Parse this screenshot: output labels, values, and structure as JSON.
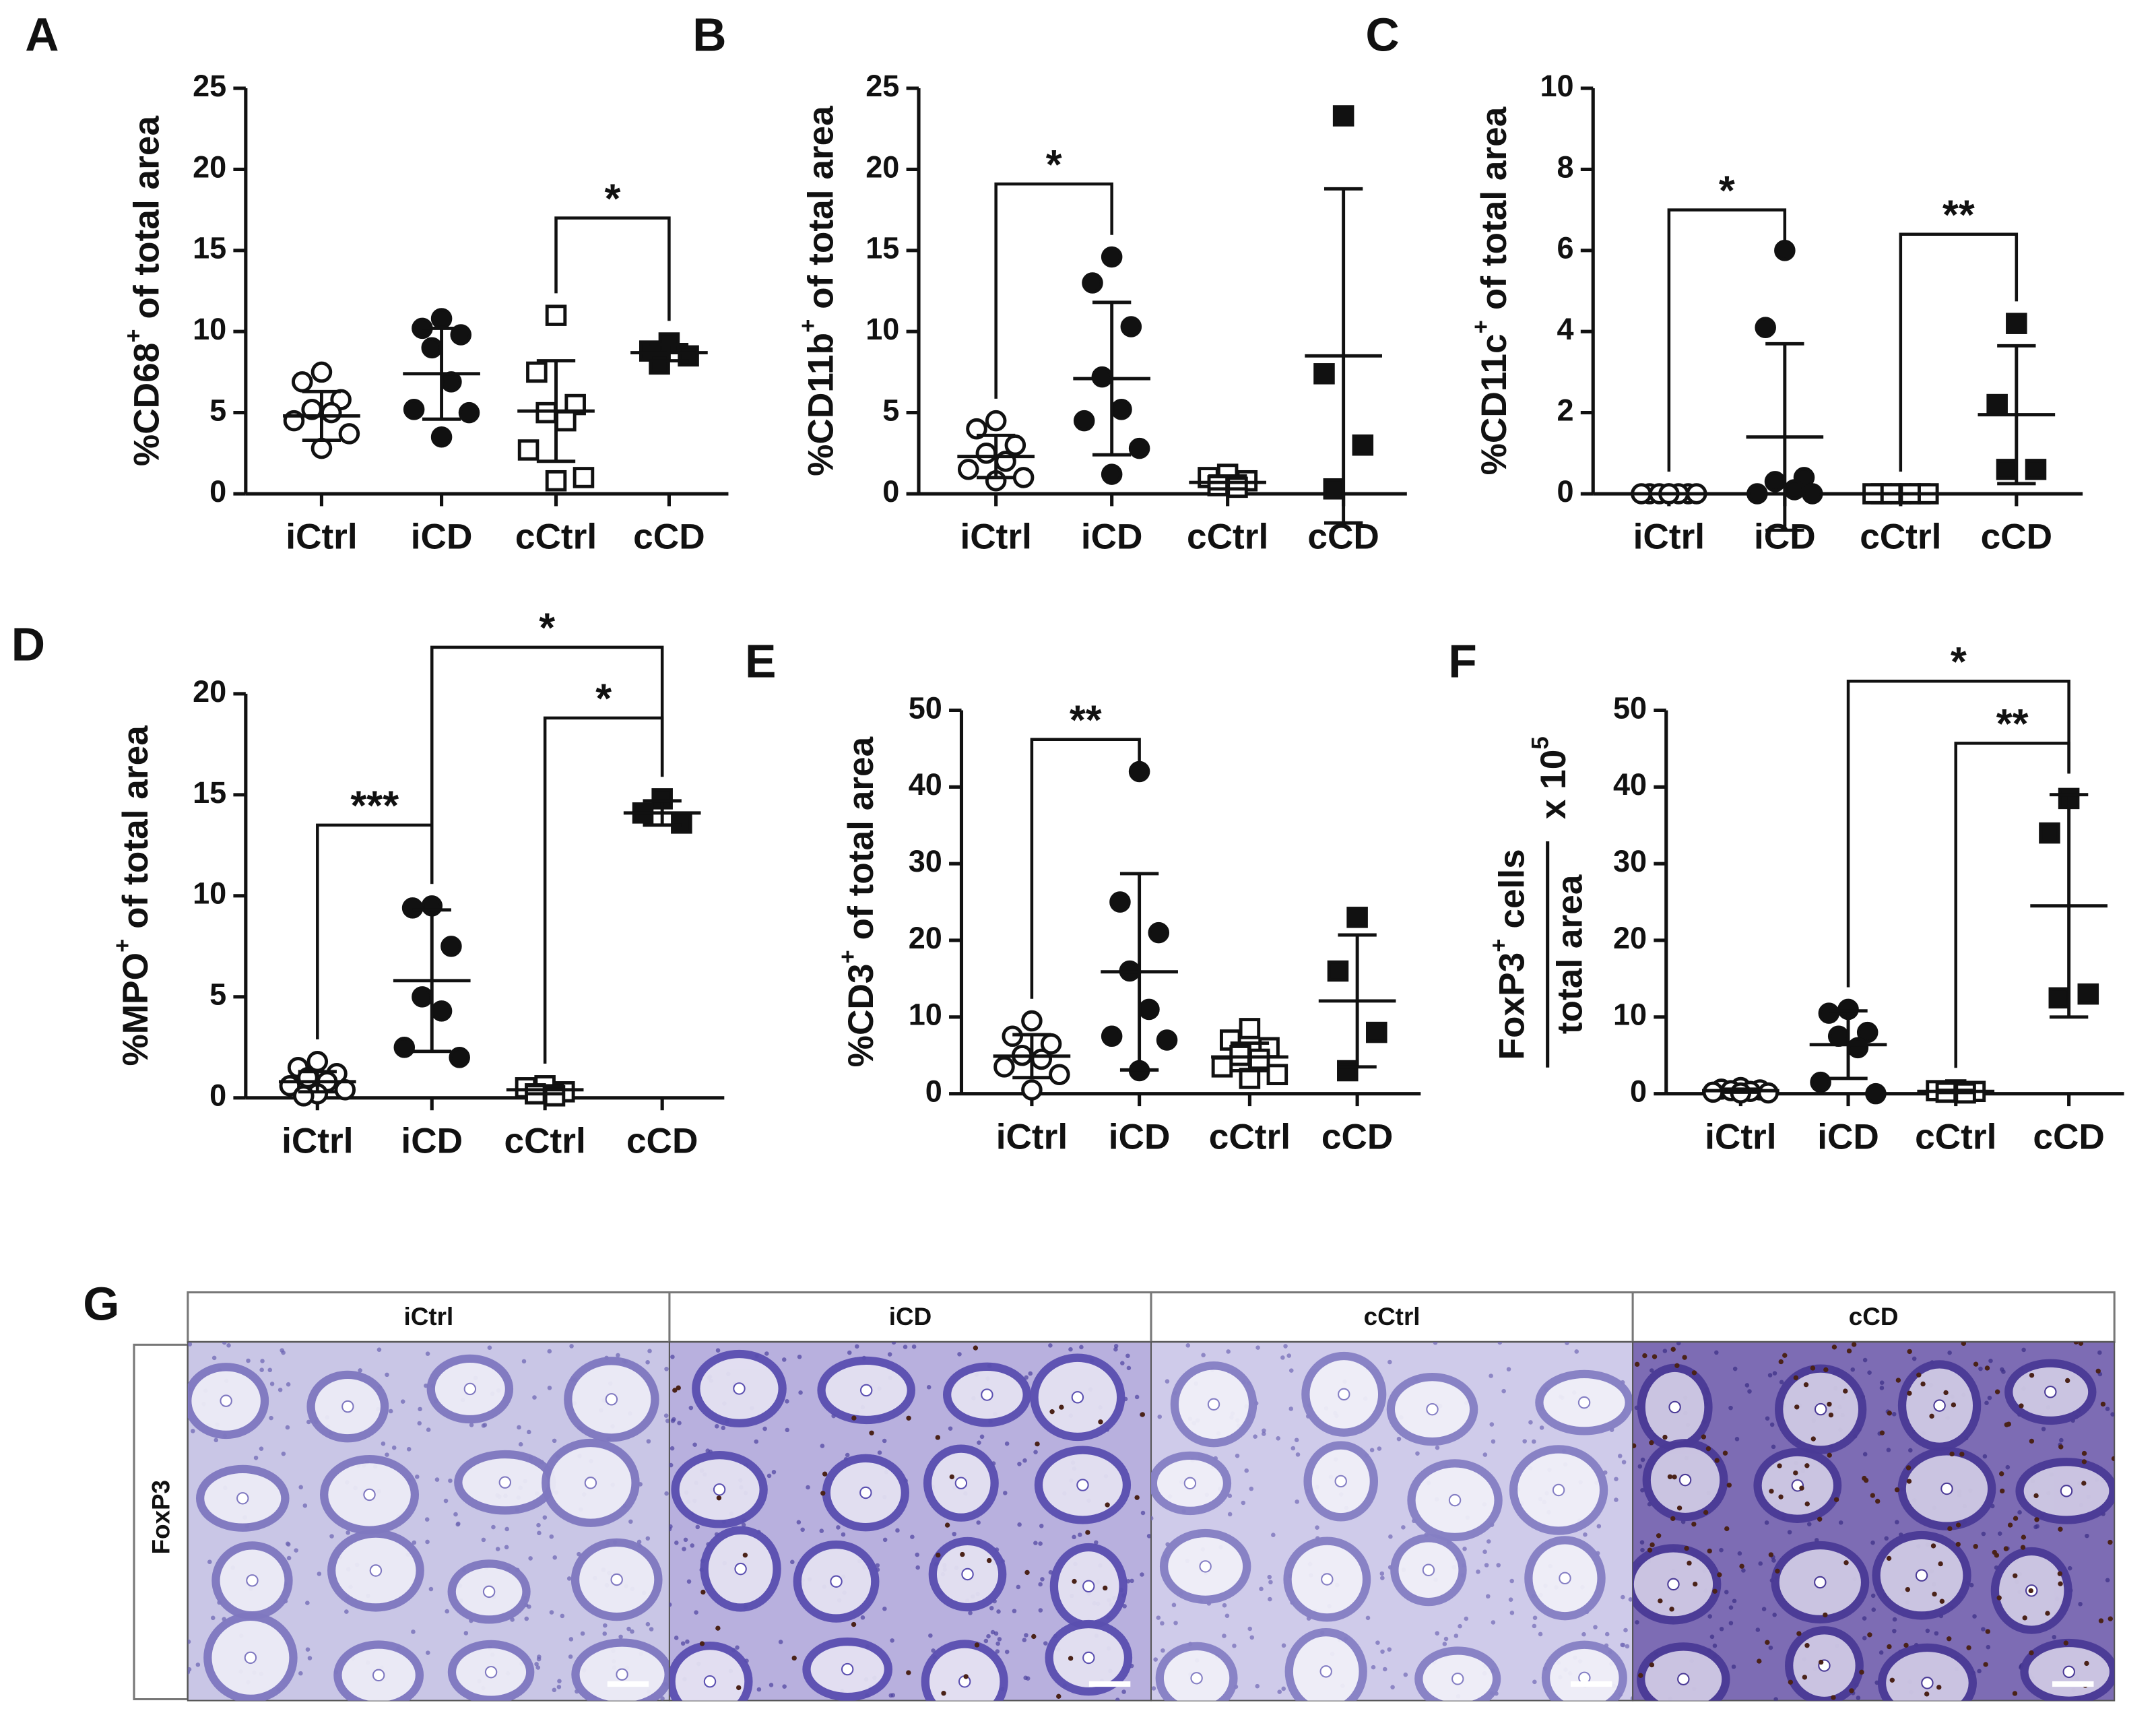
{
  "chart_data": [
    {
      "type": "dot",
      "label": "A",
      "ylabel": [
        {
          "text": "%CD68"
        },
        {
          "text": "+",
          "sup": true
        },
        {
          "text": " of total area"
        }
      ],
      "ylim": [
        0,
        25
      ],
      "yticks": [
        0,
        5,
        10,
        15,
        20,
        25
      ],
      "color": "#111111",
      "groups": [
        {
          "name": "iCtrl",
          "marker": "circle",
          "filled": false,
          "values": [
            7.5,
            6.9,
            5.8,
            5.2,
            5.0,
            4.5,
            3.7,
            2.8
          ],
          "mean": 4.8,
          "sd": 1.5
        },
        {
          "name": "iCD",
          "marker": "circle",
          "filled": true,
          "values": [
            10.8,
            10.2,
            9.8,
            9.0,
            6.9,
            5.2,
            5.0,
            3.5
          ],
          "mean": 7.4,
          "sd": 2.8
        },
        {
          "name": "cCtrl",
          "marker": "square",
          "filled": false,
          "values": [
            11.0,
            7.5,
            5.5,
            5.0,
            4.5,
            2.7,
            1.0,
            0.8
          ],
          "mean": 5.1,
          "sd": 3.1
        },
        {
          "name": "cCD",
          "marker": "square",
          "filled": true,
          "values": [
            9.3,
            8.8,
            8.5,
            8.0
          ],
          "mean": 8.7,
          "sd": 0.5
        }
      ],
      "annotations": [
        {
          "between": [
            "cCtrl",
            "cCD"
          ],
          "y": 17,
          "label": "*"
        }
      ]
    },
    {
      "type": "dot",
      "label": "B",
      "ylabel": [
        {
          "text": "%CD11b"
        },
        {
          "text": "+",
          "sup": true
        },
        {
          "text": " of total area"
        }
      ],
      "ylim": [
        0,
        25
      ],
      "yticks": [
        0,
        5,
        10,
        15,
        20,
        25
      ],
      "color": "#111111",
      "groups": [
        {
          "name": "iCtrl",
          "marker": "circle",
          "filled": false,
          "values": [
            4.5,
            4.0,
            3.0,
            2.5,
            2.0,
            1.5,
            1.0,
            0.8
          ],
          "mean": 2.3,
          "sd": 1.3
        },
        {
          "name": "iCD",
          "marker": "circle",
          "filled": true,
          "values": [
            14.6,
            13.0,
            10.3,
            7.2,
            5.2,
            4.5,
            2.8,
            1.2
          ],
          "mean": 7.1,
          "sd": 4.7
        },
        {
          "name": "cCtrl",
          "marker": "square",
          "filled": false,
          "values": [
            1.2,
            1.0,
            0.8,
            0.5,
            0.4
          ],
          "mean": 0.7,
          "sd": 0.4
        },
        {
          "name": "cCD",
          "marker": "square",
          "filled": true,
          "values": [
            23.3,
            7.4,
            3.0,
            0.3
          ],
          "mean": 8.5,
          "sd": 10.3
        }
      ],
      "annotations": [
        {
          "between": [
            "iCtrl",
            "iCD"
          ],
          "y": 19.1,
          "label": "*"
        }
      ]
    },
    {
      "type": "dot",
      "label": "C",
      "ylabel": [
        {
          "text": "%CD11c"
        },
        {
          "text": "+",
          "sup": true
        },
        {
          "text": " of total area"
        }
      ],
      "ylim": [
        0,
        10
      ],
      "yticks": [
        0,
        2,
        4,
        6,
        8,
        10
      ],
      "color": "#111111",
      "groups": [
        {
          "name": "iCtrl",
          "marker": "circle",
          "filled": false,
          "values": [
            0,
            0,
            0,
            0,
            0,
            0,
            0,
            0
          ],
          "mean": 0,
          "sd": 0
        },
        {
          "name": "iCD",
          "marker": "circle",
          "filled": true,
          "values": [
            6.0,
            4.1,
            0.4,
            0.3,
            0.1,
            0.0,
            0.0
          ],
          "mean": 1.4,
          "sd": 2.3
        },
        {
          "name": "cCtrl",
          "marker": "square",
          "filled": false,
          "values": [
            0,
            0,
            0,
            0,
            0,
            0,
            0
          ],
          "mean": 0,
          "sd": 0
        },
        {
          "name": "cCD",
          "marker": "square",
          "filled": true,
          "values": [
            4.2,
            2.2,
            0.6,
            0.6
          ],
          "mean": 1.95,
          "sd": 1.7
        }
      ],
      "annotations": [
        {
          "between": [
            "iCtrl",
            "iCD"
          ],
          "y": 7.0,
          "label": "*"
        },
        {
          "between": [
            "cCtrl",
            "cCD"
          ],
          "y": 6.4,
          "label": "**"
        }
      ]
    },
    {
      "type": "dot",
      "label": "D",
      "ylabel": [
        {
          "text": "%MPO"
        },
        {
          "text": "+",
          "sup": true
        },
        {
          "text": " of total area"
        }
      ],
      "ylim": [
        0,
        20
      ],
      "yticks": [
        0,
        5,
        10,
        15,
        20
      ],
      "color": "#111111",
      "groups": [
        {
          "name": "iCtrl",
          "marker": "circle",
          "filled": false,
          "values": [
            1.8,
            1.5,
            1.2,
            1.0,
            0.8,
            0.6,
            0.4,
            0.2,
            0.1
          ],
          "mean": 0.8,
          "sd": 0.5
        },
        {
          "name": "iCD",
          "marker": "circle",
          "filled": true,
          "values": [
            9.5,
            9.4,
            7.5,
            5.0,
            4.3,
            2.5,
            2.0
          ],
          "mean": 5.8,
          "sd": 3.5
        },
        {
          "name": "cCtrl",
          "marker": "square",
          "filled": false,
          "values": [
            0.6,
            0.5,
            0.3,
            0.2,
            0.1
          ],
          "mean": 0.4,
          "sd": 0.2
        },
        {
          "name": "cCD",
          "marker": "square",
          "filled": true,
          "values": [
            14.8,
            14.1,
            13.6
          ],
          "mean": 14.1,
          "sd": 0.6
        }
      ],
      "annotations": [
        {
          "between": [
            "iCtrl",
            "iCD"
          ],
          "y": 13.5,
          "label": "***"
        },
        {
          "between": [
            "iCD",
            "cCD"
          ],
          "y": 22.3,
          "label": "*"
        },
        {
          "between": [
            "cCtrl",
            "cCD"
          ],
          "y": 18.8,
          "label": "*"
        }
      ]
    },
    {
      "type": "dot",
      "label": "E",
      "ylabel": [
        {
          "text": "%CD3"
        },
        {
          "text": "+",
          "sup": true
        },
        {
          "text": " of total area"
        }
      ],
      "ylim": [
        0,
        50
      ],
      "yticks": [
        0,
        10,
        20,
        30,
        40,
        50
      ],
      "color": "#111111",
      "groups": [
        {
          "name": "iCtrl",
          "marker": "circle",
          "filled": false,
          "values": [
            9.5,
            7.5,
            6.5,
            5.0,
            4.5,
            3.5,
            2.5,
            0.5
          ],
          "mean": 4.9,
          "sd": 2.8
        },
        {
          "name": "iCD",
          "marker": "circle",
          "filled": true,
          "values": [
            42,
            25,
            21,
            16,
            11,
            7.5,
            7.0,
            3.0
          ],
          "mean": 15.9,
          "sd": 12.8
        },
        {
          "name": "cCtrl",
          "marker": "square",
          "filled": false,
          "values": [
            8.5,
            7.0,
            6.0,
            5.0,
            4.5,
            3.5,
            2.5,
            2.0
          ],
          "mean": 4.8,
          "sd": 1.8
        },
        {
          "name": "cCD",
          "marker": "square",
          "filled": true,
          "values": [
            23,
            16,
            8,
            3
          ],
          "mean": 12.1,
          "sd": 8.6
        }
      ],
      "annotations": [
        {
          "between": [
            "iCtrl",
            "iCD"
          ],
          "y": 46.2,
          "label": "**"
        }
      ]
    },
    {
      "type": "dot",
      "label": "F",
      "ylabel_fraction": {
        "numerator": [
          {
            "text": "FoxP3"
          },
          {
            "text": "+",
            "sup": true
          },
          {
            "text": " cells"
          }
        ],
        "denominator": [
          {
            "text": "total area"
          }
        ],
        "factor": [
          {
            "text": "x 10"
          },
          {
            "text": "5",
            "sup": true
          }
        ]
      },
      "ylim": [
        0,
        50
      ],
      "yticks": [
        0,
        10,
        20,
        30,
        40,
        50
      ],
      "color": "#111111",
      "groups": [
        {
          "name": "iCtrl",
          "marker": "circle",
          "filled": false,
          "values": [
            0.8,
            0.6,
            0.5,
            0.4,
            0.3,
            0.2,
            0.1,
            0.1
          ],
          "mean": 0.4,
          "sd": 0.2
        },
        {
          "name": "iCD",
          "marker": "circle",
          "filled": true,
          "values": [
            11,
            10.5,
            8.0,
            7.5,
            6.0,
            1.5,
            0
          ],
          "mean": 6.4,
          "sd": 4.4
        },
        {
          "name": "cCtrl",
          "marker": "square",
          "filled": false,
          "values": [
            0.5,
            0.4,
            0.3,
            0.2,
            0.1
          ],
          "mean": 0.3,
          "sd": 0.15
        },
        {
          "name": "cCD",
          "marker": "square",
          "filled": true,
          "values": [
            38.5,
            34,
            13,
            12.5
          ],
          "mean": 24.5,
          "sd": 14.5
        }
      ],
      "annotations": [
        {
          "between": [
            "iCD",
            "cCD"
          ],
          "y": 53.8,
          "label": "*"
        },
        {
          "between": [
            "cCtrl",
            "cCD"
          ],
          "y": 45.7,
          "label": "**"
        }
      ]
    }
  ],
  "histology": {
    "label": "G",
    "row_label": "FoxP3",
    "columns": [
      "iCtrl",
      "iCD",
      "cCtrl",
      "cCD"
    ]
  }
}
